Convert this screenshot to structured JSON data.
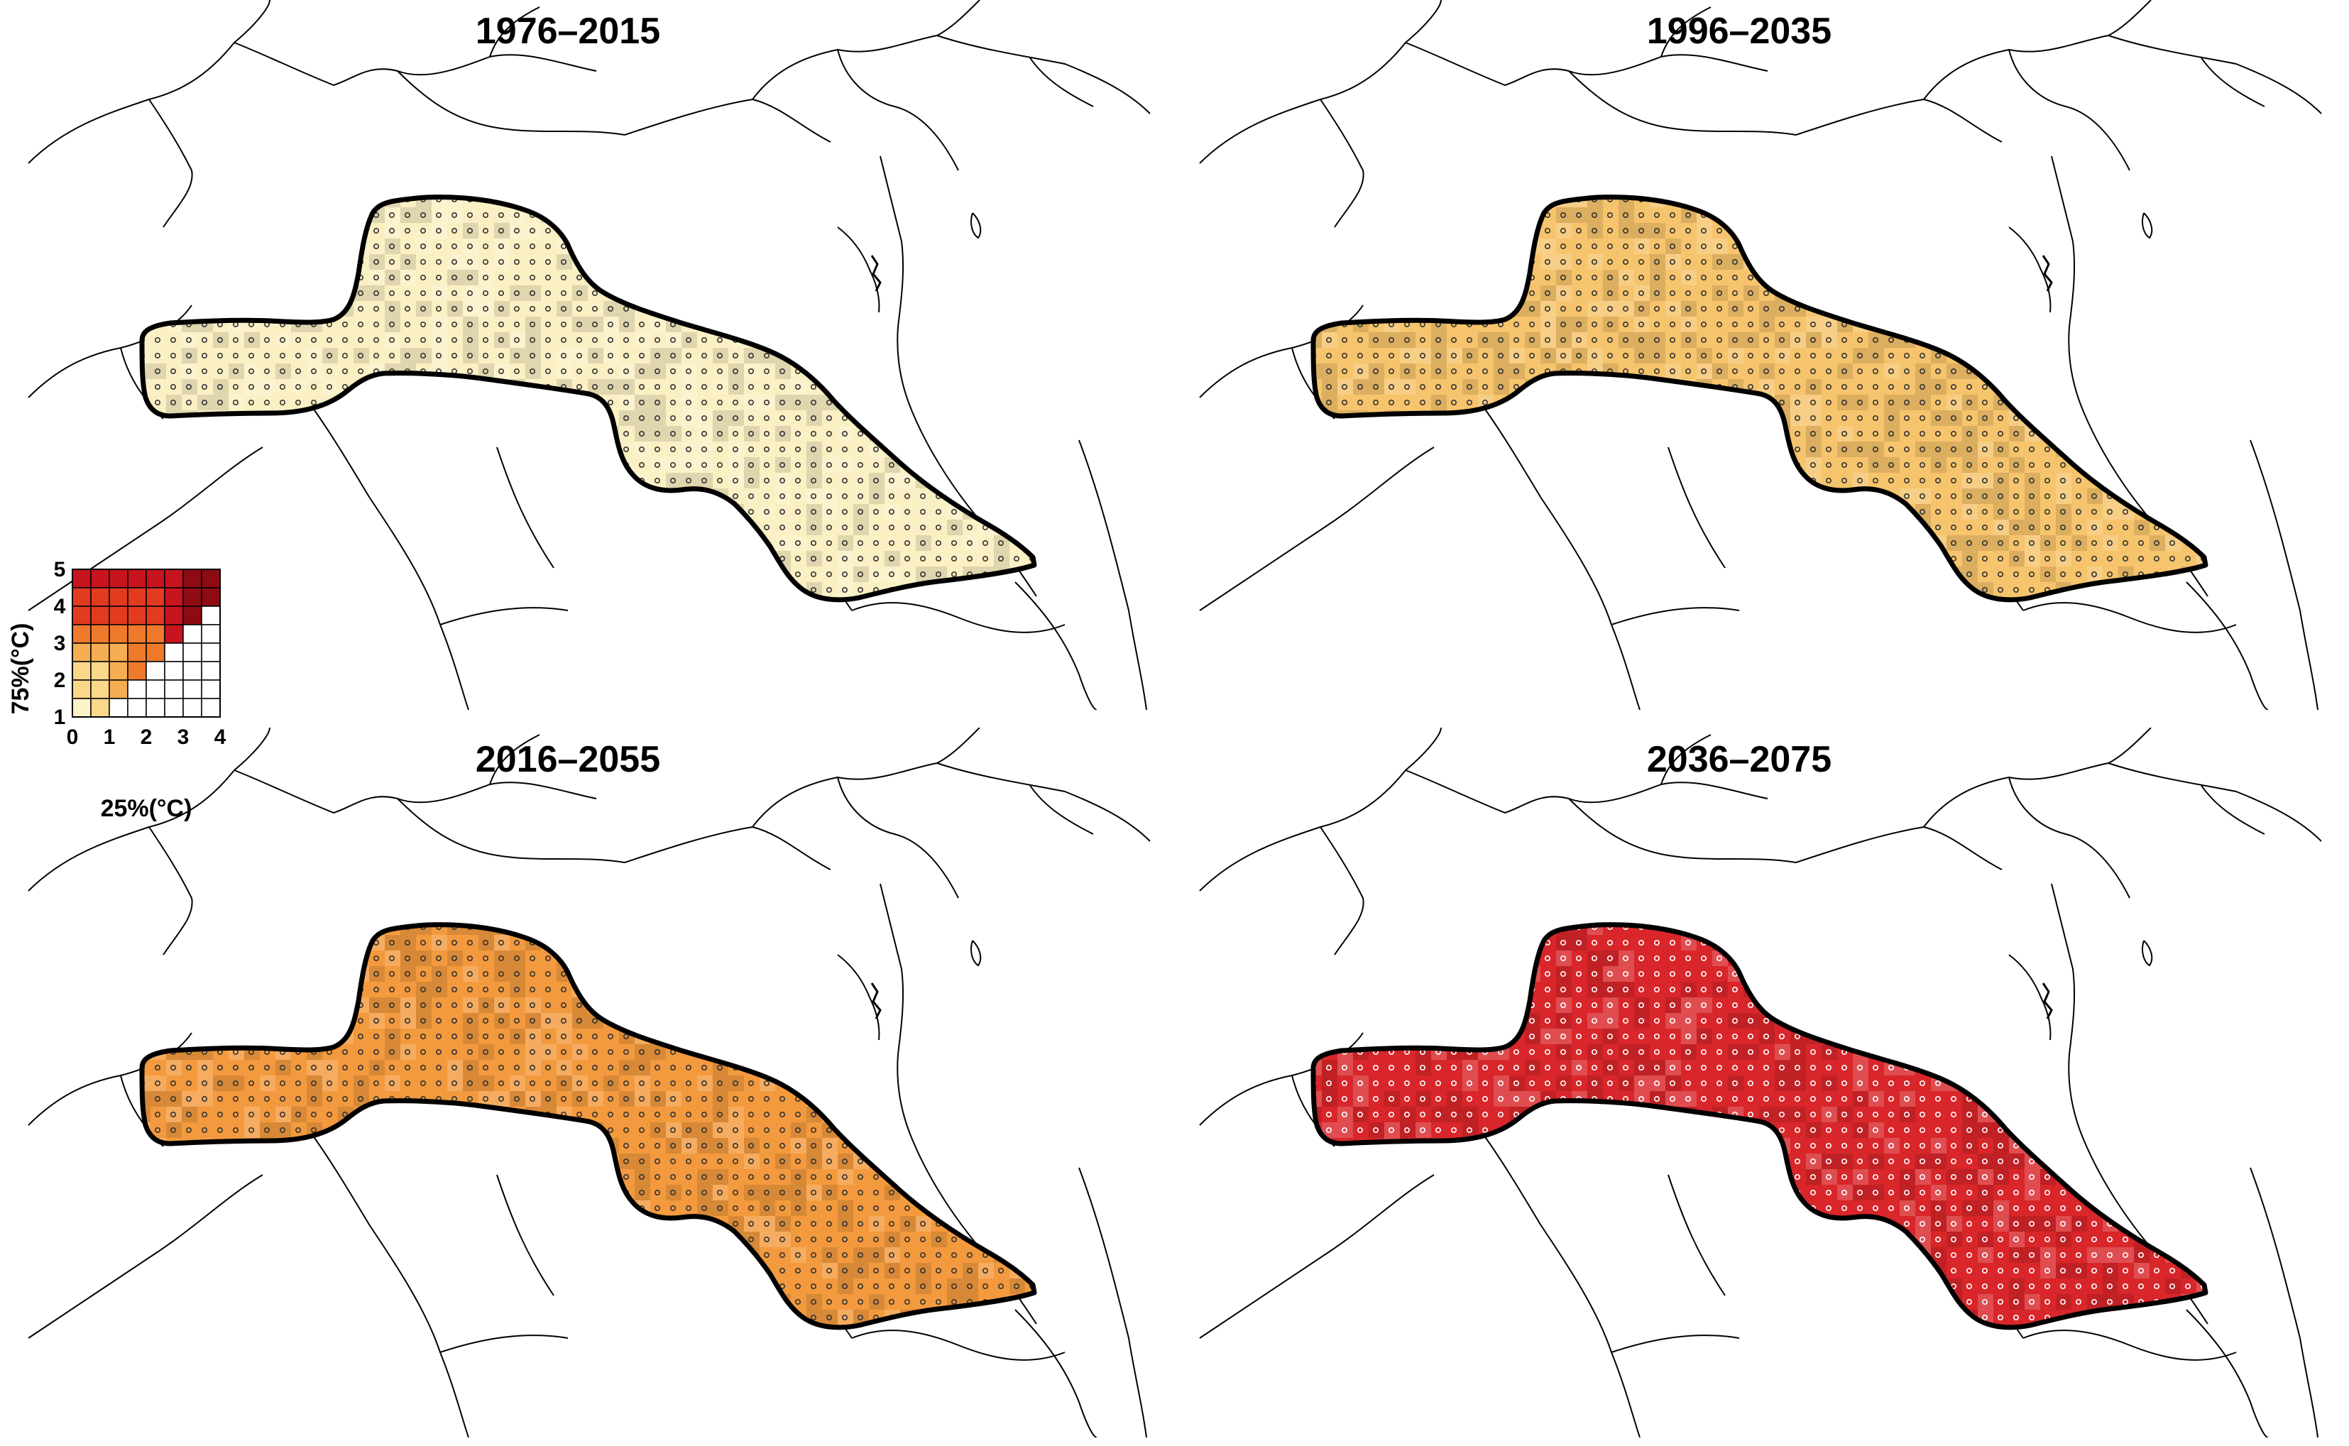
{
  "panels": [
    {
      "title": "1976–2015",
      "fill_color": "#fbf0c4",
      "dot_color": "#333333"
    },
    {
      "title": "1996–2035",
      "fill_color": "#f6c46c",
      "dot_color": "#333333"
    },
    {
      "title": "2016–2055",
      "fill_color": "#f39a3e",
      "dot_color": "#333333"
    },
    {
      "title": "2036–2075",
      "fill_color": "#d8262a",
      "dot_color": "#ffffff"
    }
  ],
  "legend": {
    "x_label": "25%(°C)",
    "y_label": "75%(°C)",
    "x_ticks": [
      "0",
      "1",
      "2",
      "3",
      "4"
    ],
    "y_ticks": [
      "1",
      "2",
      "3",
      "4",
      "5"
    ],
    "colors": {
      "level1": "#fdf2c8",
      "level2": "#fbd78a",
      "level3": "#f6ae52",
      "level4": "#ef7a2c",
      "level5": "#e23b20",
      "level6": "#c7141e",
      "level7": "#8e0b14",
      "empty": "#ffffff"
    }
  }
}
